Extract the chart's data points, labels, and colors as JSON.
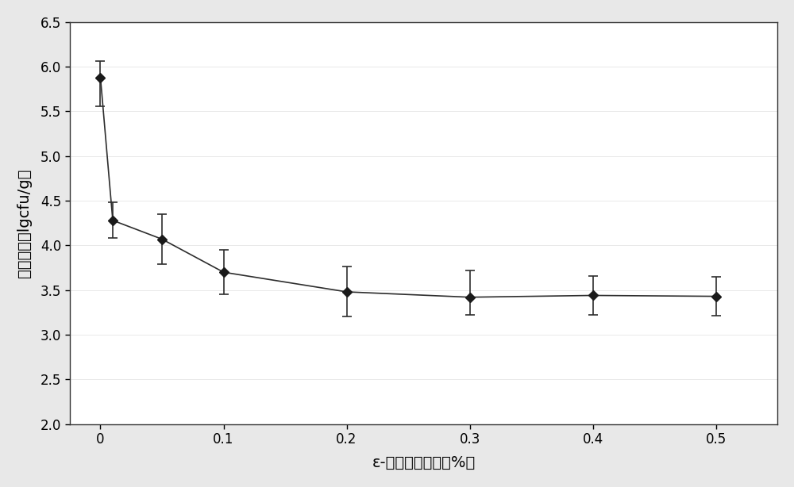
{
  "x": [
    0.0,
    0.01,
    0.05,
    0.1,
    0.2,
    0.3,
    0.4,
    0.5
  ],
  "y": [
    5.88,
    4.28,
    4.07,
    3.7,
    3.48,
    3.42,
    3.44,
    3.43
  ],
  "yerr_upper": [
    0.18,
    0.2,
    0.28,
    0.25,
    0.28,
    0.3,
    0.22,
    0.22
  ],
  "yerr_lower": [
    0.32,
    0.2,
    0.28,
    0.25,
    0.28,
    0.2,
    0.22,
    0.22
  ],
  "xlim": [
    -0.025,
    0.55
  ],
  "ylim": [
    2.0,
    6.5
  ],
  "xticks": [
    0.0,
    0.1,
    0.2,
    0.3,
    0.4,
    0.5
  ],
  "yticks": [
    2.0,
    2.5,
    3.0,
    3.5,
    4.0,
    4.5,
    5.0,
    5.5,
    6.0,
    6.5
  ],
  "line_color": "#2d2d2d",
  "marker_color": "#1a1a1a",
  "background_color": "#ffffff",
  "figure_background": "#e8e8e8"
}
